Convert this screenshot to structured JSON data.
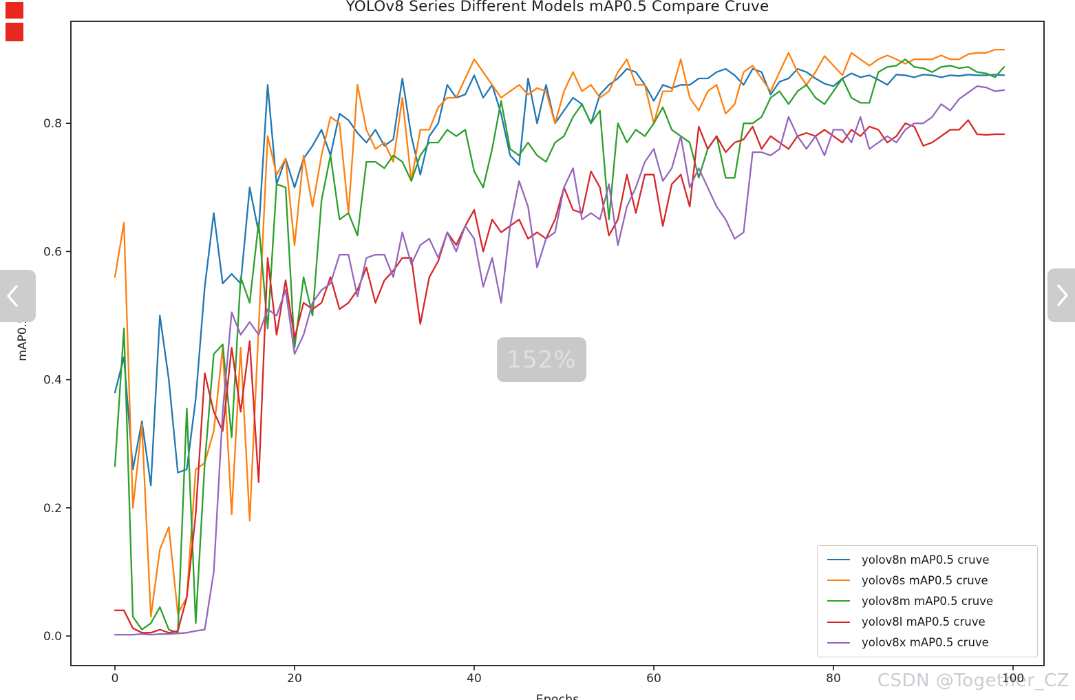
{
  "page": {
    "watermark": "CSDN @Together_CZ",
    "zoom_badge": "152%",
    "red_mark_color": "#e8281e",
    "nav_button_color": "#cdcdcd"
  },
  "chart_data": {
    "type": "line",
    "title": "YOLOv8 Series Different Models mAP0.5 Compare Cruve",
    "xlabel": "Epochs",
    "ylabel": "mAP0.5",
    "xticks": [
      0,
      20,
      40,
      60,
      80,
      100
    ],
    "yticks": [
      0.0,
      0.2,
      0.4,
      0.6,
      0.8
    ],
    "xlim": [
      -4.9,
      103.4
    ],
    "ylim": [
      -0.046,
      0.959
    ],
    "grid": false,
    "legend_position": "lower right",
    "x": [
      0,
      1,
      2,
      3,
      4,
      5,
      6,
      7,
      8,
      9,
      10,
      11,
      12,
      13,
      14,
      15,
      16,
      17,
      18,
      19,
      20,
      21,
      22,
      23,
      24,
      25,
      26,
      27,
      28,
      29,
      30,
      31,
      32,
      33,
      34,
      35,
      36,
      37,
      38,
      39,
      40,
      41,
      42,
      43,
      44,
      45,
      46,
      47,
      48,
      49,
      50,
      51,
      52,
      53,
      54,
      55,
      56,
      57,
      58,
      59,
      60,
      61,
      62,
      63,
      64,
      65,
      66,
      67,
      68,
      69,
      70,
      71,
      72,
      73,
      74,
      75,
      76,
      77,
      78,
      79,
      80,
      81,
      82,
      83,
      84,
      85,
      86,
      87,
      88,
      89,
      90,
      91,
      92,
      93,
      94,
      95,
      96,
      97,
      98,
      99
    ],
    "series": [
      {
        "id": "yolov8n",
        "label": "yolov8n mAP0.5 cruve",
        "color": "#1f77b4",
        "values": [
          0.38,
          0.435,
          0.26,
          0.335,
          0.235,
          0.5,
          0.4,
          0.255,
          0.26,
          0.37,
          0.545,
          0.66,
          0.55,
          0.565,
          0.55,
          0.7,
          0.63,
          0.86,
          0.705,
          0.745,
          0.7,
          0.745,
          0.765,
          0.79,
          0.75,
          0.815,
          0.805,
          0.785,
          0.77,
          0.79,
          0.765,
          0.775,
          0.87,
          0.78,
          0.72,
          0.78,
          0.8,
          0.86,
          0.84,
          0.845,
          0.875,
          0.84,
          0.86,
          0.815,
          0.75,
          0.735,
          0.87,
          0.8,
          0.86,
          0.8,
          0.82,
          0.84,
          0.83,
          0.8,
          0.845,
          0.86,
          0.87,
          0.885,
          0.88,
          0.86,
          0.835,
          0.86,
          0.855,
          0.86,
          0.86,
          0.87,
          0.87,
          0.88,
          0.885,
          0.875,
          0.86,
          0.885,
          0.88,
          0.845,
          0.865,
          0.87,
          0.885,
          0.88,
          0.87,
          0.862,
          0.858,
          0.87,
          0.878,
          0.872,
          0.875,
          0.868,
          0.86,
          0.876,
          0.875,
          0.872,
          0.876,
          0.875,
          0.872,
          0.875,
          0.874,
          0.876,
          0.875,
          0.875,
          0.876,
          0.875
        ]
      },
      {
        "id": "yolov8s",
        "label": "yolov8s mAP0.5 cruve",
        "color": "#ff7f0e",
        "values": [
          0.56,
          0.645,
          0.2,
          0.33,
          0.03,
          0.135,
          0.17,
          0.035,
          0.06,
          0.26,
          0.27,
          0.32,
          0.45,
          0.19,
          0.45,
          0.18,
          0.48,
          0.78,
          0.72,
          0.745,
          0.61,
          0.75,
          0.67,
          0.75,
          0.81,
          0.8,
          0.66,
          0.86,
          0.79,
          0.76,
          0.77,
          0.74,
          0.84,
          0.71,
          0.79,
          0.79,
          0.825,
          0.84,
          0.84,
          0.87,
          0.9,
          0.88,
          0.86,
          0.84,
          0.85,
          0.86,
          0.845,
          0.855,
          0.85,
          0.8,
          0.85,
          0.88,
          0.85,
          0.86,
          0.84,
          0.85,
          0.88,
          0.9,
          0.86,
          0.86,
          0.8,
          0.85,
          0.85,
          0.9,
          0.84,
          0.82,
          0.85,
          0.86,
          0.815,
          0.83,
          0.88,
          0.89,
          0.87,
          0.85,
          0.88,
          0.91,
          0.88,
          0.86,
          0.88,
          0.905,
          0.89,
          0.875,
          0.91,
          0.9,
          0.89,
          0.9,
          0.906,
          0.9,
          0.893,
          0.9,
          0.9,
          0.9,
          0.906,
          0.9,
          0.9,
          0.908,
          0.91,
          0.91,
          0.915,
          0.915
        ]
      },
      {
        "id": "yolov8m",
        "label": "yolov8m mAP0.5 cruve",
        "color": "#2ca02c",
        "values": [
          0.265,
          0.48,
          0.03,
          0.01,
          0.02,
          0.045,
          0.01,
          0.005,
          0.355,
          0.02,
          0.27,
          0.44,
          0.455,
          0.31,
          0.56,
          0.52,
          0.645,
          0.48,
          0.705,
          0.7,
          0.45,
          0.56,
          0.5,
          0.68,
          0.75,
          0.65,
          0.66,
          0.625,
          0.74,
          0.74,
          0.73,
          0.75,
          0.74,
          0.71,
          0.75,
          0.77,
          0.77,
          0.79,
          0.78,
          0.79,
          0.725,
          0.7,
          0.76,
          0.835,
          0.76,
          0.75,
          0.77,
          0.75,
          0.74,
          0.77,
          0.78,
          0.81,
          0.83,
          0.8,
          0.82,
          0.65,
          0.8,
          0.77,
          0.79,
          0.78,
          0.8,
          0.825,
          0.79,
          0.78,
          0.77,
          0.715,
          0.76,
          0.78,
          0.715,
          0.715,
          0.8,
          0.8,
          0.81,
          0.84,
          0.85,
          0.83,
          0.85,
          0.86,
          0.84,
          0.83,
          0.85,
          0.87,
          0.84,
          0.832,
          0.832,
          0.88,
          0.888,
          0.89,
          0.9,
          0.888,
          0.886,
          0.88,
          0.888,
          0.89,
          0.886,
          0.888,
          0.88,
          0.878,
          0.872,
          0.888
        ]
      },
      {
        "id": "yolov8l",
        "label": "yolov8l mAP0.5 cruve",
        "color": "#d62728",
        "values": [
          0.04,
          0.04,
          0.012,
          0.005,
          0.005,
          0.01,
          0.005,
          0.008,
          0.06,
          0.19,
          0.41,
          0.35,
          0.32,
          0.45,
          0.35,
          0.46,
          0.24,
          0.59,
          0.47,
          0.555,
          0.465,
          0.52,
          0.51,
          0.52,
          0.56,
          0.51,
          0.52,
          0.54,
          0.575,
          0.52,
          0.555,
          0.57,
          0.59,
          0.59,
          0.487,
          0.56,
          0.585,
          0.63,
          0.61,
          0.64,
          0.665,
          0.6,
          0.65,
          0.63,
          0.64,
          0.65,
          0.62,
          0.63,
          0.62,
          0.65,
          0.7,
          0.665,
          0.66,
          0.725,
          0.7,
          0.625,
          0.65,
          0.72,
          0.66,
          0.72,
          0.72,
          0.64,
          0.705,
          0.72,
          0.67,
          0.795,
          0.76,
          0.78,
          0.755,
          0.77,
          0.775,
          0.795,
          0.76,
          0.78,
          0.77,
          0.76,
          0.78,
          0.785,
          0.78,
          0.79,
          0.78,
          0.77,
          0.79,
          0.78,
          0.795,
          0.79,
          0.77,
          0.78,
          0.8,
          0.795,
          0.765,
          0.77,
          0.78,
          0.79,
          0.79,
          0.805,
          0.783,
          0.782,
          0.783,
          0.783
        ]
      },
      {
        "id": "yolov8x",
        "label": "yolov8x mAP0.5 cruve",
        "color": "#9467bd",
        "values": [
          0.002,
          0.002,
          0.002,
          0.003,
          0.002,
          0.003,
          0.003,
          0.004,
          0.005,
          0.008,
          0.01,
          0.1,
          0.35,
          0.505,
          0.47,
          0.49,
          0.47,
          0.51,
          0.5,
          0.54,
          0.44,
          0.47,
          0.52,
          0.54,
          0.55,
          0.595,
          0.595,
          0.53,
          0.59,
          0.595,
          0.595,
          0.56,
          0.63,
          0.58,
          0.61,
          0.62,
          0.59,
          0.63,
          0.6,
          0.64,
          0.62,
          0.545,
          0.59,
          0.52,
          0.64,
          0.71,
          0.67,
          0.575,
          0.62,
          0.63,
          0.7,
          0.73,
          0.65,
          0.66,
          0.65,
          0.705,
          0.61,
          0.67,
          0.7,
          0.74,
          0.76,
          0.71,
          0.73,
          0.78,
          0.7,
          0.73,
          0.7,
          0.67,
          0.65,
          0.62,
          0.63,
          0.755,
          0.755,
          0.75,
          0.76,
          0.81,
          0.78,
          0.76,
          0.78,
          0.75,
          0.79,
          0.79,
          0.77,
          0.81,
          0.76,
          0.77,
          0.78,
          0.77,
          0.79,
          0.8,
          0.8,
          0.81,
          0.83,
          0.82,
          0.838,
          0.848,
          0.858,
          0.856,
          0.85,
          0.852
        ]
      }
    ]
  }
}
